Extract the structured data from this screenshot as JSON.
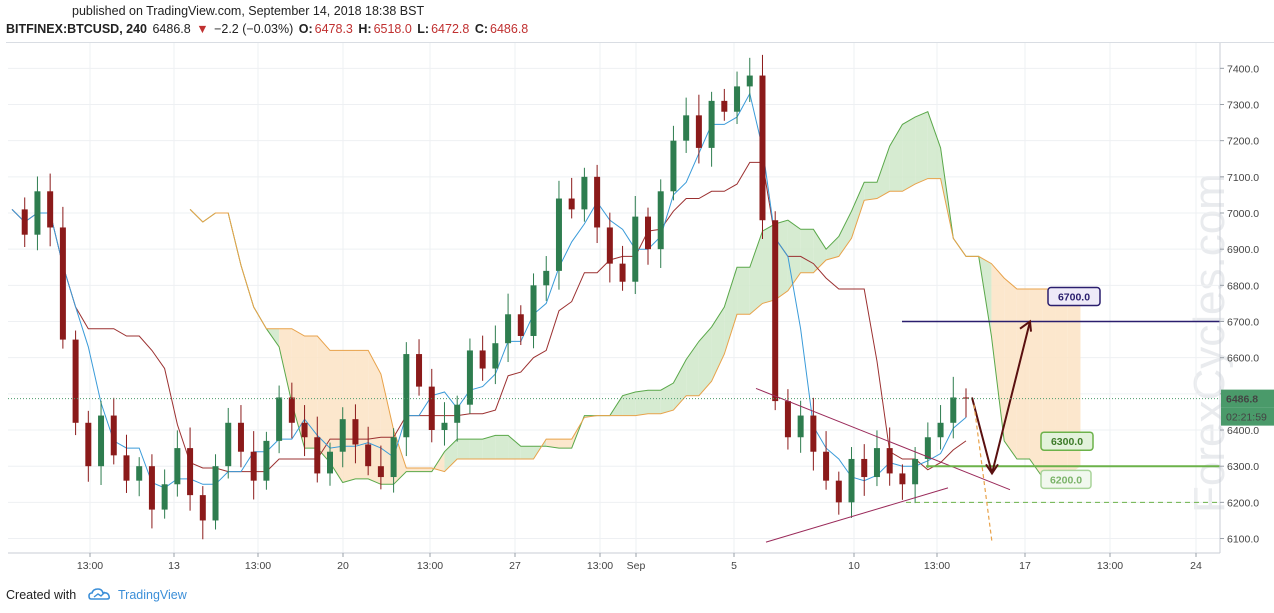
{
  "header": {
    "published": "published on TradingView.com, September 14, 2018 18:38 BST",
    "symbol": "BITFINEX:BTCUSD, 240",
    "last": "6486.8",
    "change": "−2.2 (−0.03%)",
    "open_label": "O:",
    "open": "6478.3",
    "high_label": "H:",
    "high": "6518.0",
    "low_label": "L:",
    "low": "6472.8",
    "close_label": "C:",
    "close": "6486.8"
  },
  "footer": {
    "created": "Created with",
    "brand": "TradingView"
  },
  "watermark": "ForexCycles.com",
  "colors": {
    "bull": "#2e7d4f",
    "bear": "#8b1a1a",
    "tenkan": "#3a9bd9",
    "kijun": "#9b3030",
    "span_a": "#5aa84a",
    "span_b": "#e8a24a",
    "cloud_up": "#cfe8c9",
    "cloud_down": "#fbe3c4",
    "level_6700": "#2a1e6e",
    "level_6300": "#6cb24a",
    "wedge": "#9a2a5a",
    "arrow": "#5a1010"
  },
  "chart_data": {
    "type": "candlestick",
    "instrument": "BITFINEX:BTCUSD",
    "timeframe": "240",
    "ylim": [
      6060,
      7470
    ],
    "y_ticks": [
      6100,
      6200,
      6300,
      6400,
      6500,
      6600,
      6700,
      6800,
      6900,
      7000,
      7100,
      7200,
      7300,
      7400
    ],
    "x_ticks": [
      "13:00",
      "13",
      "13:00",
      "20",
      "13:00",
      "27",
      "13:00",
      "Sep",
      "5",
      "10",
      "13:00",
      "17",
      "13:00",
      "24"
    ],
    "price_marker": "6486.8",
    "countdown": "02:21:59",
    "current_price": 6486.8,
    "close_path": [
      7010,
      6940,
      7060,
      6960,
      6650,
      6420,
      6300,
      6440,
      6330,
      6260,
      6300,
      6180,
      6250,
      6350,
      6220,
      6150,
      6300,
      6420,
      6340,
      6260,
      6370,
      6490,
      6420,
      6380,
      6280,
      6340,
      6430,
      6360,
      6300,
      6270,
      6380,
      6610,
      6520,
      6400,
      6420,
      6470,
      6620,
      6570,
      6640,
      6720,
      6660,
      6800,
      6840,
      7040,
      7010,
      7100,
      6960,
      6860,
      6810,
      6990,
      6900,
      7060,
      7200,
      7270,
      7180,
      7310,
      7280,
      7350,
      7380,
      6980,
      6480,
      6380,
      6440,
      6340,
      6260,
      6200,
      6320,
      6270,
      6350,
      6280,
      6250,
      6320,
      6380,
      6420,
      6490,
      6486.8
    ],
    "levels": [
      {
        "label": "6700.0",
        "value": 6700
      },
      {
        "label": "6300.0",
        "value": 6300
      },
      {
        "label": "6200.0",
        "value": 6200
      }
    ],
    "indicator": "Ichimoku Cloud",
    "grid": true
  }
}
